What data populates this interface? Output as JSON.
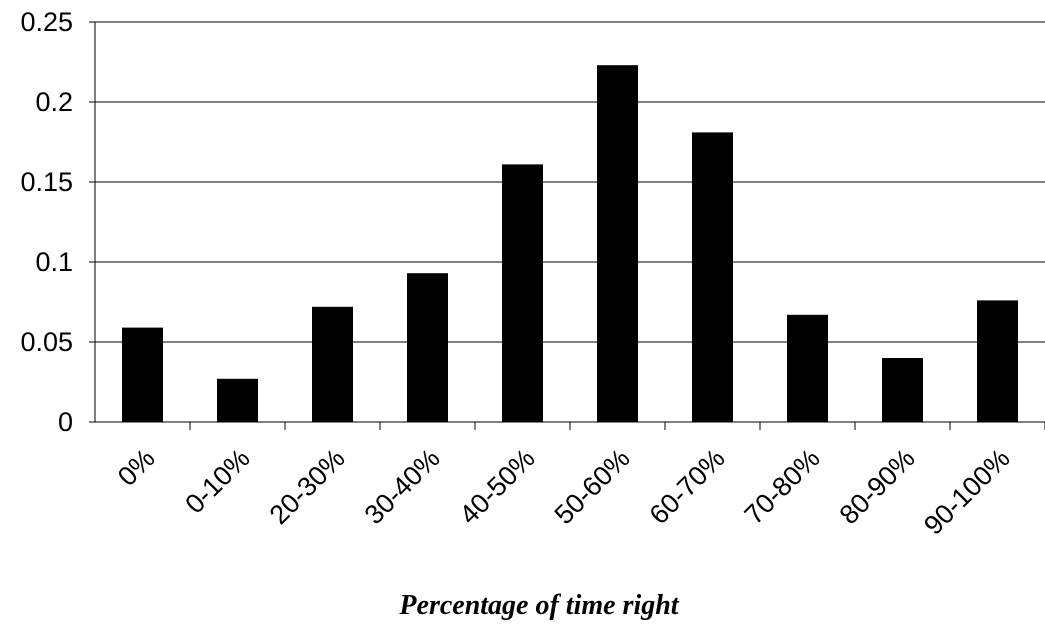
{
  "chart_data": {
    "type": "bar",
    "categories": [
      "0%",
      "0-10%",
      "20-30%",
      "30-40%",
      "40-50%",
      "50-60%",
      "60-70%",
      "70-80%",
      "80-90%",
      "90-100%"
    ],
    "values": [
      0.059,
      0.027,
      0.072,
      0.093,
      0.161,
      0.223,
      0.181,
      0.067,
      0.04,
      0.076
    ],
    "title": "",
    "xlabel": "Percentage of time right",
    "ylabel": "",
    "ylim": [
      0,
      0.25
    ],
    "yticks": [
      0,
      0.05,
      0.1,
      0.15,
      0.2,
      0.25
    ],
    "ytick_labels": [
      "0",
      "0.05",
      "0.1",
      "0.15",
      "0.2",
      "0.25"
    ],
    "grid": true,
    "legend": false,
    "bar_color": "#000000",
    "grid_color": "#000000"
  }
}
